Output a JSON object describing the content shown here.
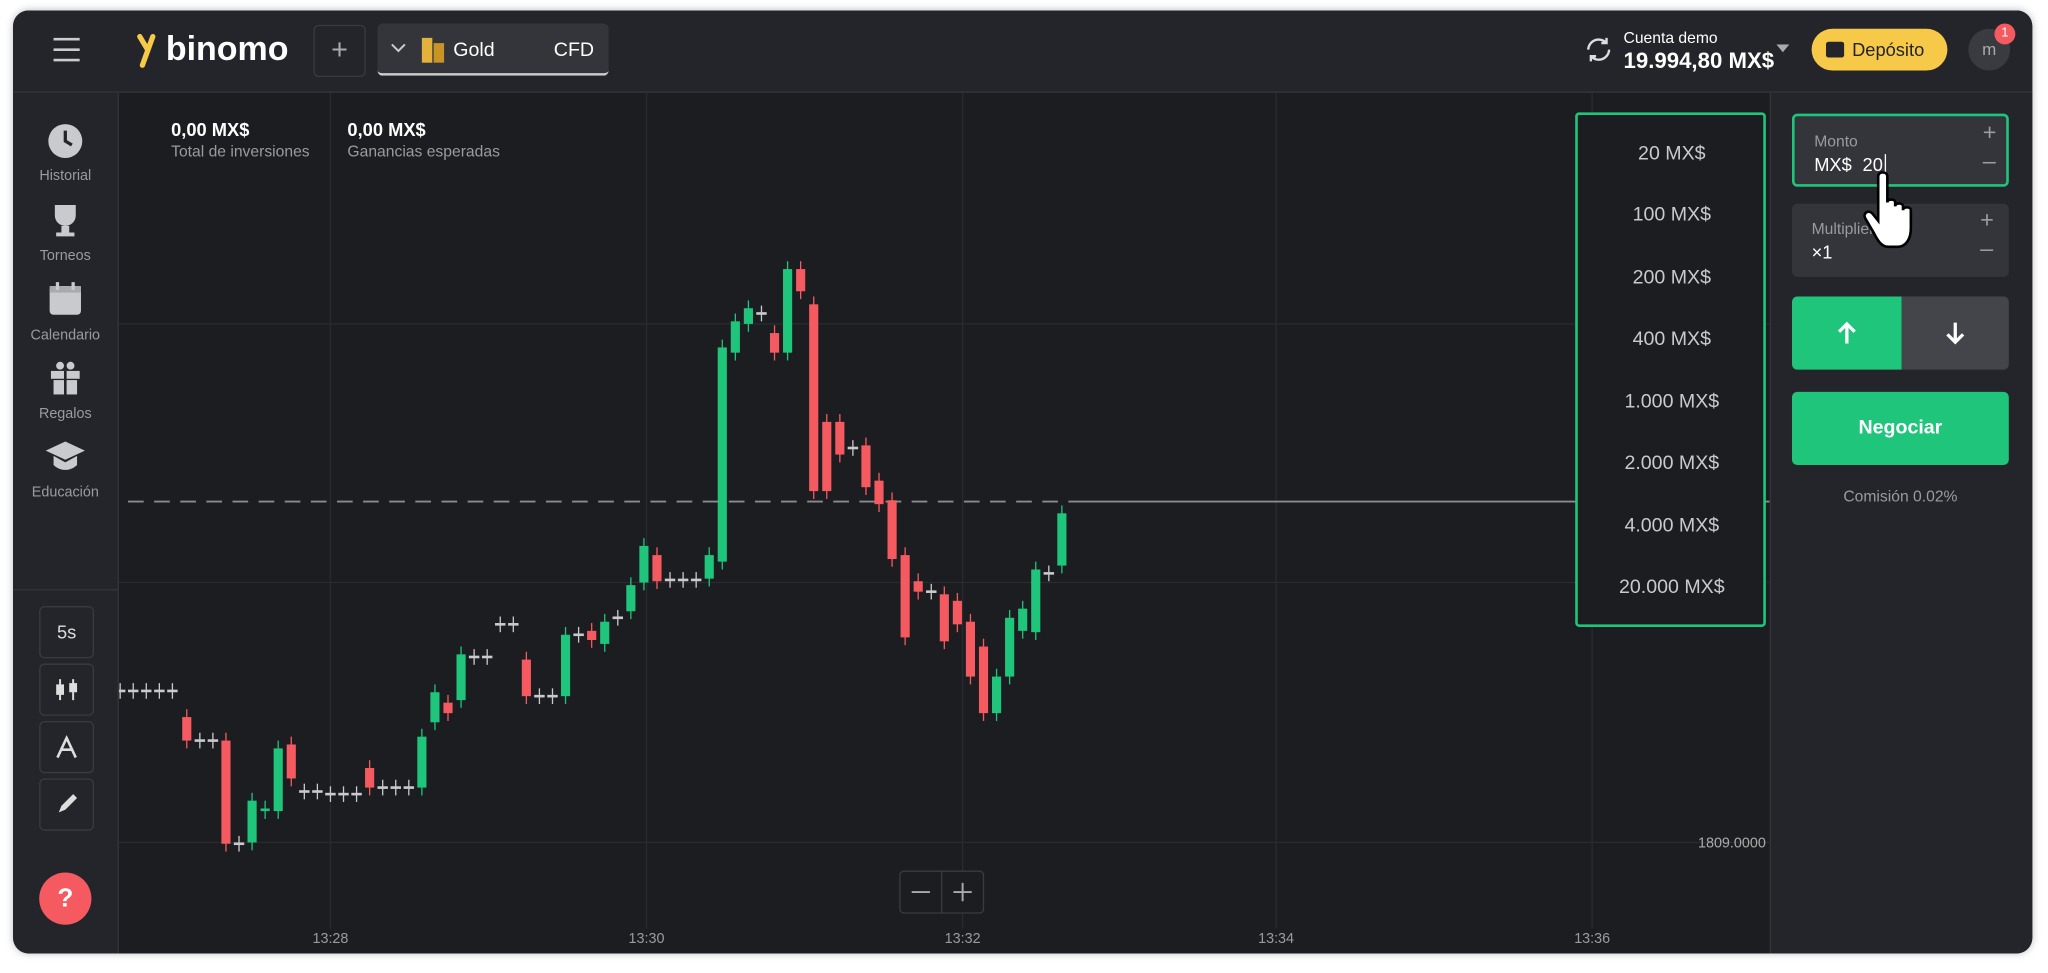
{
  "header": {
    "logo": "binomo",
    "asset": "Gold",
    "asset_type": "CFD",
    "account_label": "Cuenta demo",
    "balance": "19.994,80 MX$",
    "deposit": "Depósito",
    "badge": "1",
    "avatar": "m"
  },
  "sidebar": {
    "items": [
      "Historial",
      "Torneos",
      "Calendario",
      "Regalos",
      "Educación"
    ],
    "timeframe": "5s",
    "help": "?"
  },
  "stats": {
    "investment": "0,00 MX$",
    "investment_label": "Total de inversiones",
    "profit": "0,00 MX$",
    "profit_label": "Ganancias esperadas"
  },
  "amount_menu": [
    "20 MX$",
    "100 MX$",
    "200 MX$",
    "400 MX$",
    "1.000 MX$",
    "2.000 MX$",
    "4.000 MX$",
    "20.000 MX$"
  ],
  "chart": {
    "time_labels": [
      "13:28",
      "13:30",
      "13:32",
      "13:34",
      "13:36"
    ],
    "price_label": "1809.0000"
  },
  "panel": {
    "amount_label": "Monto",
    "currency": "MX$",
    "amount": "20",
    "multiplier_label": "Multiplier",
    "multiplier": "×1",
    "trade": "Negociar",
    "commission": "Comisión 0.02%"
  }
}
